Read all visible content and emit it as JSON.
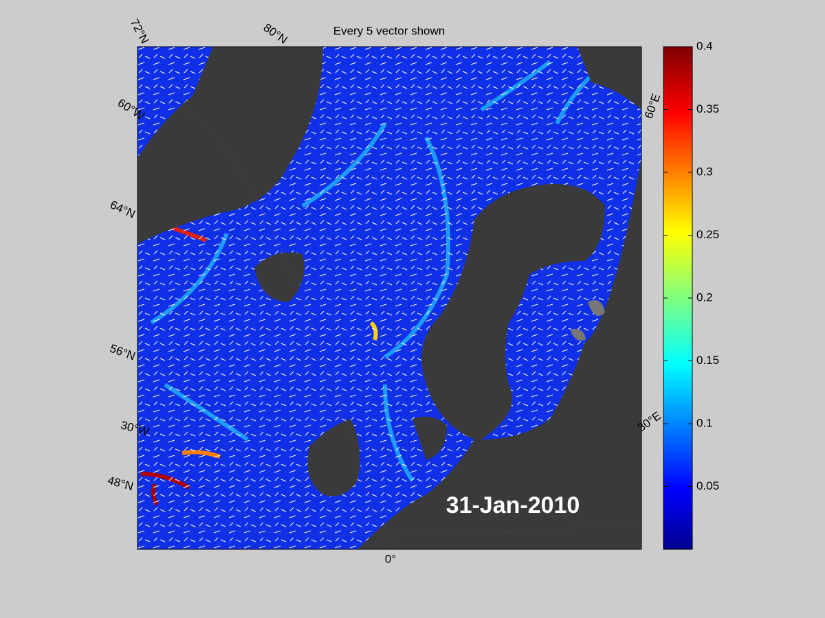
{
  "title": "Every 5 vector shown",
  "date": "31-Jan-2010",
  "grid_labels": [
    "72°N",
    "80°N",
    "60°W",
    "64°N",
    "56°N",
    "30°W",
    "48°N",
    "0°",
    "30°E",
    "60°E"
  ],
  "colorbar": {
    "lim": [
      0,
      0.4
    ],
    "ticks": [
      0.05,
      0.1,
      0.15,
      0.2,
      0.25,
      0.3,
      0.35,
      0.4
    ]
  }
}
